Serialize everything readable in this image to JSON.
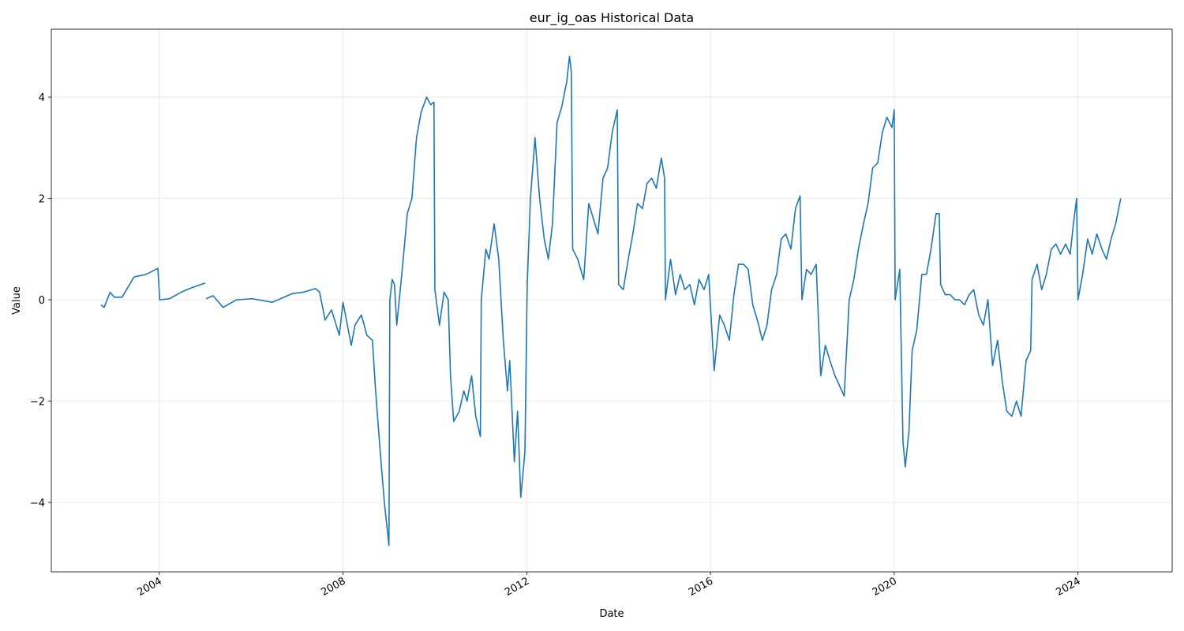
{
  "chart_data": {
    "type": "line",
    "title": "eur_ig_oas Historical Data",
    "x_label": "Date",
    "y_label": "Value",
    "color": "#1f77b4",
    "grid": true,
    "xlim": [
      2001.65,
      2026.05
    ],
    "xticks": [
      2004,
      2008,
      2012,
      2016,
      2020,
      2024
    ],
    "ylim": [
      -5.37,
      5.34
    ],
    "yticks": [
      {
        "value": -4,
        "label": "−4"
      },
      {
        "value": -2,
        "label": "−2"
      },
      0,
      2,
      4
    ],
    "x": [
      2002.73,
      2002.8,
      2002.93,
      2003.02,
      2003.19,
      2003.45,
      2003.71,
      2003.97,
      2004.01,
      2004.22,
      2004.48,
      2004.74,
      2005.0,
      2005.01,
      2005.02,
      2005.17,
      2005.39,
      2005.68,
      2006.03,
      2006.46,
      2006.89,
      2007.14,
      2007.4,
      2007.49,
      2007.61,
      2007.75,
      2007.92,
      2008.0,
      2008.18,
      2008.26,
      2008.4,
      2008.52,
      2008.64,
      2008.71,
      2008.81,
      2008.9,
      2009.0,
      2009.02,
      2009.07,
      2009.12,
      2009.17,
      2009.29,
      2009.4,
      2009.5,
      2009.6,
      2009.7,
      2009.82,
      2009.91,
      2009.98,
      2010.0,
      2010.1,
      2010.2,
      2010.29,
      2010.34,
      2010.41,
      2010.53,
      2010.63,
      2010.7,
      2010.8,
      2010.89,
      2010.99,
      2011.01,
      2011.11,
      2011.18,
      2011.29,
      2011.39,
      2011.49,
      2011.58,
      2011.63,
      2011.73,
      2011.8,
      2011.87,
      2011.96,
      2012.01,
      2012.08,
      2012.18,
      2012.28,
      2012.38,
      2012.47,
      2012.56,
      2012.66,
      2012.76,
      2012.87,
      2012.93,
      2012.97,
      2013.0,
      2013.11,
      2013.24,
      2013.35,
      2013.45,
      2013.55,
      2013.66,
      2013.76,
      2013.86,
      2013.97,
      2014.0,
      2014.1,
      2014.21,
      2014.31,
      2014.41,
      2014.52,
      2014.62,
      2014.72,
      2014.82,
      2014.93,
      2015.0,
      2015.02,
      2015.13,
      2015.24,
      2015.34,
      2015.44,
      2015.55,
      2015.65,
      2015.75,
      2015.86,
      2015.96,
      2016.08,
      2016.2,
      2016.3,
      2016.41,
      2016.51,
      2016.61,
      2016.72,
      2016.82,
      2016.92,
      2017.02,
      2017.13,
      2017.23,
      2017.33,
      2017.44,
      2017.54,
      2017.64,
      2017.75,
      2017.85,
      2017.95,
      2017.99,
      2018.09,
      2018.19,
      2018.3,
      2018.4,
      2018.5,
      2018.6,
      2018.71,
      2018.81,
      2018.91,
      2019.02,
      2019.12,
      2019.22,
      2019.33,
      2019.43,
      2019.53,
      2019.64,
      2019.74,
      2019.84,
      2019.95,
      2020.0,
      2020.02,
      2020.12,
      2020.19,
      2020.24,
      2020.32,
      2020.39,
      2020.49,
      2020.6,
      2020.7,
      2020.8,
      2020.91,
      2020.98,
      2021.01,
      2021.11,
      2021.22,
      2021.32,
      2021.42,
      2021.53,
      2021.63,
      2021.73,
      2021.84,
      2021.94,
      2022.04,
      2022.14,
      2022.25,
      2022.35,
      2022.45,
      2022.56,
      2022.66,
      2022.76,
      2022.87,
      2022.97,
      2023.0,
      2023.11,
      2023.21,
      2023.31,
      2023.42,
      2023.52,
      2023.62,
      2023.73,
      2023.83,
      2023.9,
      2023.97,
      2024.0,
      2024.1,
      2024.21,
      2024.31,
      2024.41,
      2024.52,
      2024.62,
      2024.72,
      2024.82,
      2024.93
    ],
    "values": [
      -0.1,
      -0.15,
      0.15,
      0.05,
      0.05,
      0.45,
      0.5,
      0.62,
      0.0,
      0.02,
      0.15,
      0.25,
      0.33,
      null,
      0.02,
      0.08,
      -0.15,
      0.0,
      0.02,
      -0.05,
      0.12,
      0.15,
      0.22,
      0.15,
      -0.4,
      -0.2,
      -0.7,
      -0.05,
      -0.9,
      -0.5,
      -0.3,
      -0.7,
      -0.8,
      -1.8,
      -3.0,
      -4.0,
      -4.85,
      0.0,
      0.4,
      0.3,
      -0.5,
      0.6,
      1.7,
      2.0,
      3.2,
      3.7,
      4.0,
      3.85,
      3.9,
      0.2,
      -0.5,
      0.15,
      0.0,
      -1.5,
      -2.4,
      -2.2,
      -1.8,
      -2.0,
      -1.5,
      -2.3,
      -2.7,
      0.0,
      1.0,
      0.8,
      1.5,
      0.8,
      -0.8,
      -1.8,
      -1.2,
      -3.2,
      -2.2,
      -3.9,
      -3.0,
      0.3,
      2.0,
      3.2,
      2.0,
      1.2,
      0.8,
      1.5,
      3.5,
      3.8,
      4.3,
      4.8,
      4.5,
      1.0,
      0.8,
      0.4,
      1.9,
      1.6,
      1.3,
      2.4,
      2.6,
      3.3,
      3.75,
      0.3,
      0.2,
      0.8,
      1.3,
      1.9,
      1.8,
      2.3,
      2.4,
      2.2,
      2.8,
      2.4,
      0.0,
      0.8,
      0.1,
      0.5,
      0.2,
      0.3,
      -0.1,
      0.4,
      0.2,
      0.5,
      -1.4,
      -0.3,
      -0.5,
      -0.8,
      0.1,
      0.7,
      0.7,
      0.6,
      -0.1,
      -0.4,
      -0.8,
      -0.5,
      0.2,
      0.5,
      1.2,
      1.3,
      1.0,
      1.8,
      2.05,
      0.0,
      0.6,
      0.5,
      0.7,
      -1.5,
      -0.9,
      -1.2,
      -1.5,
      -1.7,
      -1.9,
      0.0,
      0.4,
      1.0,
      1.5,
      1.9,
      2.6,
      2.7,
      3.3,
      3.6,
      3.4,
      3.75,
      0.0,
      0.6,
      -2.8,
      -3.3,
      -2.6,
      -1.0,
      -0.6,
      0.5,
      0.5,
      1.0,
      1.7,
      1.7,
      0.3,
      0.1,
      0.1,
      0.0,
      0.0,
      -0.1,
      0.1,
      0.2,
      -0.3,
      -0.5,
      0.0,
      -1.3,
      -0.8,
      -1.6,
      -2.2,
      -2.3,
      -2.0,
      -2.3,
      -1.2,
      -1.0,
      0.4,
      0.7,
      0.2,
      0.5,
      1.0,
      1.1,
      0.9,
      1.1,
      0.9,
      1.5,
      2.0,
      0.0,
      0.5,
      1.2,
      0.9,
      1.3,
      1.0,
      0.8,
      1.2,
      1.5,
      2.0
    ]
  }
}
